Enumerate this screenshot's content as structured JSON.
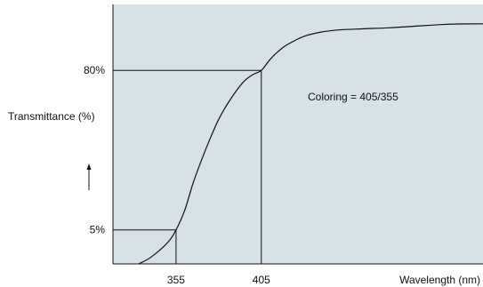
{
  "colors": {
    "plot_background": "#d6e1e8",
    "curve": "#111111",
    "guide_lines": "#111111",
    "page_background": "#ffffff"
  },
  "chart_data": {
    "type": "line",
    "title": "",
    "xlabel": "Wavelength (nm)",
    "ylabel": "Transmittance (%)",
    "ylabel_arrow": "up-arrow-icon",
    "x_ticks": [
      {
        "value": 355,
        "label": "355"
      },
      {
        "value": 405,
        "label": "405"
      }
    ],
    "y_ticks": [
      {
        "value": 5,
        "label": "5%"
      },
      {
        "value": 80,
        "label": "80%"
      }
    ],
    "annotation": "Coloring = 405/355",
    "grid": false,
    "xlim": [
      318,
      535
    ],
    "ylim": [
      -11,
      111
    ],
    "series": [
      {
        "x": [
          333,
          340,
          350,
          355,
          360,
          365,
          370,
          375,
          380,
          385,
          390,
          395,
          400,
          405,
          410,
          415,
          420,
          430,
          440,
          450,
          460,
          470,
          480,
          490,
          500,
          510,
          520,
          535
        ],
        "y": [
          -11,
          -8,
          -1,
          5,
          14,
          27,
          38,
          48,
          57,
          64,
          70,
          75,
          78,
          80,
          85,
          89,
          92,
          96,
          98,
          99,
          99.4,
          99.7,
          100,
          100.5,
          101,
          101.5,
          101.8,
          101.9
        ]
      }
    ],
    "guide_lines": [
      {
        "x": 355,
        "y": 5
      },
      {
        "x": 405,
        "y": 80
      }
    ]
  }
}
